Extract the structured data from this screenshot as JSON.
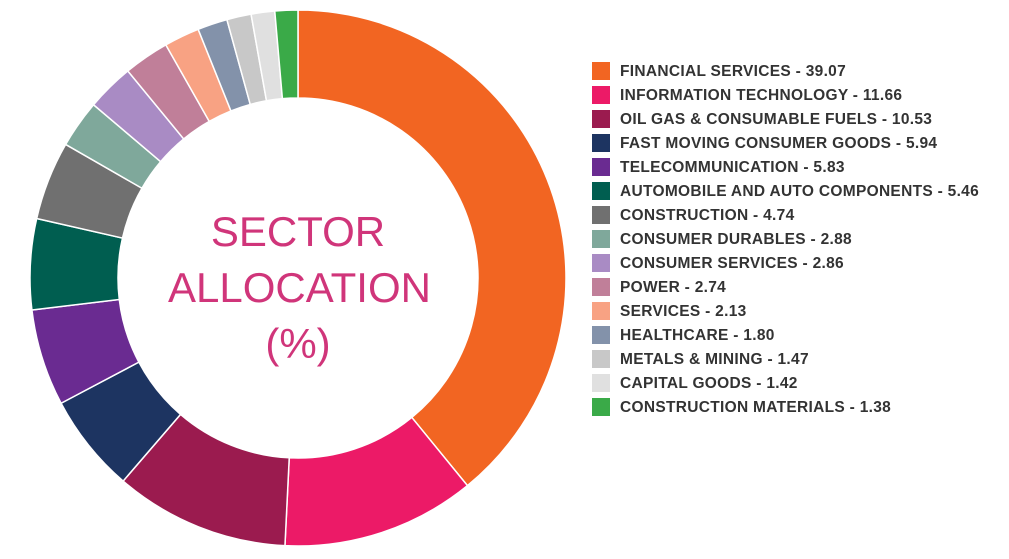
{
  "chart_data": {
    "type": "donut",
    "title": "SECTOR ALLOCATION (%)",
    "categories": [
      "FINANCIAL SERVICES - 39.07",
      "INFORMATION TECHNOLOGY - 11.66",
      "OIL GAS & CONSUMABLE FUELS - 10.53",
      "FAST MOVING CONSUMER GOODS - 5.94",
      "TELECOMMUNICATION - 5.83",
      "AUTOMOBILE AND AUTO COMPONENTS - 5.46",
      "CONSTRUCTION - 4.74",
      "CONSUMER DURABLES - 2.88",
      "CONSUMER SERVICES - 2.86",
      "POWER - 2.74",
      "SERVICES - 2.13",
      "HEALTHCARE - 1.80",
      "METALS & MINING - 1.47",
      "CAPITAL GOODS - 1.42",
      "CONSTRUCTION MATERIALS - 1.38"
    ],
    "values": [
      39.07,
      11.66,
      10.53,
      5.94,
      5.83,
      5.46,
      4.74,
      2.88,
      2.86,
      2.74,
      2.13,
      1.8,
      1.47,
      1.42,
      1.38
    ],
    "colors": [
      "#f26522",
      "#ec1a67",
      "#9b1b4f",
      "#1d3461",
      "#6a2b91",
      "#005e50",
      "#707070",
      "#7fa89b",
      "#a98bc4",
      "#c07f99",
      "#f8a283",
      "#8392aa",
      "#c8c8c8",
      "#e0e0e0",
      "#3aaa48"
    ]
  }
}
